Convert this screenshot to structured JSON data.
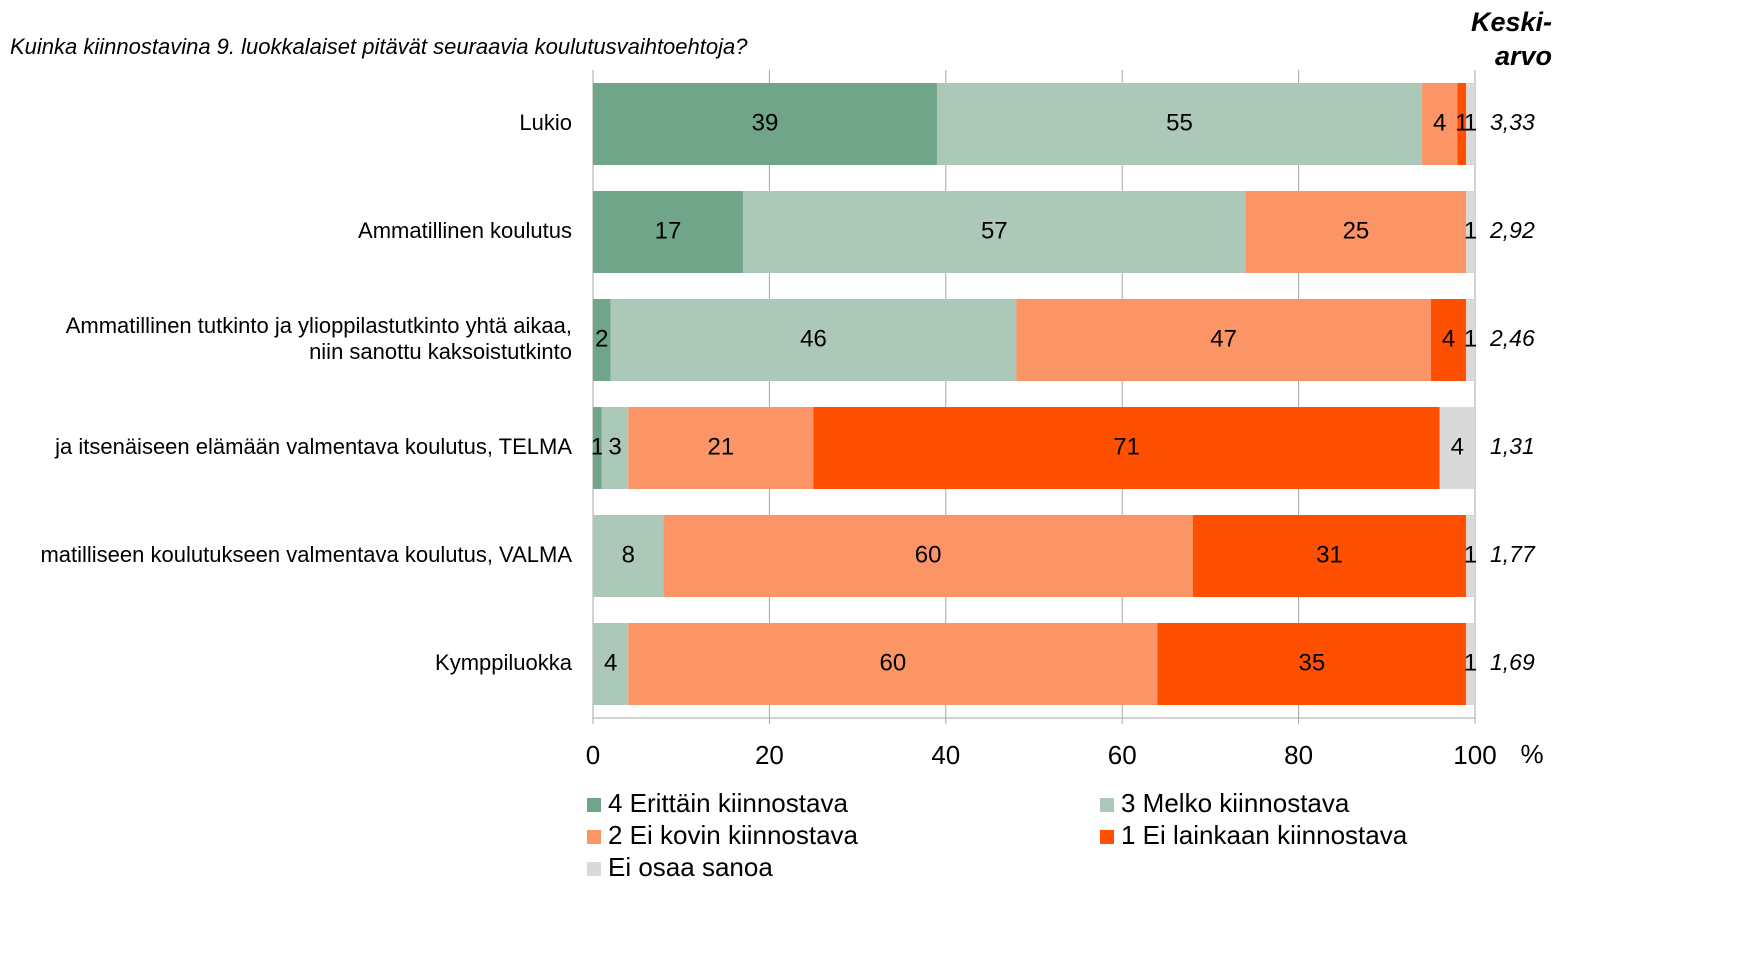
{
  "chart_data": {
    "type": "stacked_barh",
    "title": "Kuinka kiinnostavina 9. luokkalaiset pitävät seuraavia koulutusvaihtoehtoja?",
    "categories": [
      [
        "Lukio"
      ],
      [
        "Ammatillinen koulutus"
      ],
      [
        "Ammatillinen tutkinto ja ylioppilastutkinto yhtä aikaa,",
        "niin sanottu kaksoistutkinto"
      ],
      [
        "ja itsenäiseen elämään valmentava koulutus, TELMA"
      ],
      [
        "matilliseen koulutukseen valmentava koulutus, VALMA"
      ],
      [
        "Kymppiluokka"
      ]
    ],
    "series": [
      {
        "name": "4 Erittäin kiinnostava",
        "color": "#70a58a",
        "label_color": "#ffffff",
        "values": [
          39,
          17,
          2,
          1,
          null,
          null
        ]
      },
      {
        "name": "3 Melko kiinnostava",
        "color": "#abc8b8",
        "label_color": "#000000",
        "values": [
          55,
          57,
          46,
          3,
          8,
          4
        ]
      },
      {
        "name": "2 Ei kovin kiinnostava",
        "color": "#fb9566",
        "label_color": "#000000",
        "values": [
          4,
          25,
          47,
          21,
          60,
          60
        ]
      },
      {
        "name": "1 Ei lainkaan kiinnostava",
        "color": "#ff4f00",
        "label_color": "#ffffff",
        "values": [
          1,
          null,
          4,
          71,
          31,
          35
        ]
      },
      {
        "name": "Ei osaa sanoa",
        "color": "#d9d9d9",
        "label_color": "#000000",
        "values": [
          1,
          1,
          1,
          4,
          1,
          1
        ]
      }
    ],
    "xlim": [
      0,
      100
    ],
    "xticks": [
      0,
      20,
      40,
      60,
      80,
      100
    ],
    "x_unit": "%",
    "grid": true,
    "mean_title": [
      "Keski-",
      "arvo"
    ],
    "mean_labels": [
      "3,33",
      "2,92",
      "2,46",
      "1,31",
      "1,77",
      "1,69"
    ]
  }
}
